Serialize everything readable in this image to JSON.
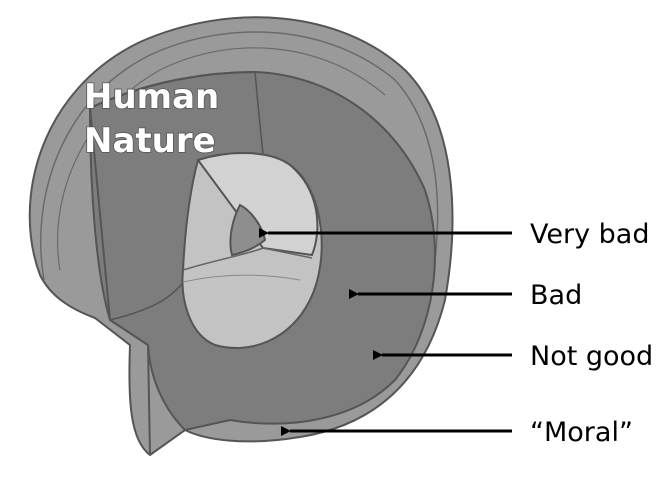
{
  "diagram": {
    "title_lines": [
      "Human",
      "Nature"
    ],
    "labels": {
      "core": "Very bad",
      "inner": "Bad",
      "mantle": "Not good",
      "crust": "“Moral”"
    },
    "colors": {
      "crust": "#9a9a9a",
      "crust_inner": "#8f8f8f",
      "mantle": "#7d7d7d",
      "inner": "#c3c3c3",
      "inner_top": "#d2d2d2",
      "core": "#8e8e8e",
      "outline": "#555555",
      "arrow": "#000000"
    }
  }
}
